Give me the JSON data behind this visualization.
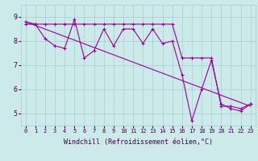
{
  "title": "",
  "xlabel": "Windchill (Refroidissement éolien,°C)",
  "ylabel": "",
  "xlim": [
    -0.5,
    23.5
  ],
  "ylim": [
    4.5,
    9.5
  ],
  "yticks": [
    5,
    6,
    7,
    8,
    9
  ],
  "xticks": [
    0,
    1,
    2,
    3,
    4,
    5,
    6,
    7,
    8,
    9,
    10,
    11,
    12,
    13,
    14,
    15,
    16,
    17,
    18,
    19,
    20,
    21,
    22,
    23
  ],
  "bg_color": "#cceaea",
  "line_color": "#990099",
  "grid_color": "#aacccc",
  "line1_x": [
    0,
    1,
    2,
    3,
    4,
    5,
    6,
    7,
    8,
    9,
    10,
    11,
    12,
    13,
    14,
    15,
    16,
    17,
    18,
    19,
    20,
    21,
    22,
    23
  ],
  "line1_y": [
    8.8,
    8.7,
    8.1,
    7.8,
    7.7,
    8.9,
    7.3,
    7.6,
    8.5,
    7.8,
    8.5,
    8.5,
    7.9,
    8.5,
    7.9,
    8.0,
    6.6,
    4.7,
    6.0,
    7.2,
    5.4,
    5.2,
    5.1,
    5.4
  ],
  "line2_x": [
    0,
    1,
    2,
    3,
    4,
    5,
    6,
    7,
    8,
    9,
    10,
    11,
    12,
    13,
    14,
    15,
    16,
    17,
    18,
    19,
    20,
    21,
    22,
    23
  ],
  "line2_y": [
    8.7,
    8.7,
    8.7,
    8.7,
    8.7,
    8.7,
    8.7,
    8.7,
    8.7,
    8.7,
    8.7,
    8.7,
    8.7,
    8.7,
    8.7,
    8.7,
    7.3,
    7.3,
    7.3,
    7.3,
    5.3,
    5.3,
    5.2,
    5.4
  ],
  "line3_x": [
    0,
    23
  ],
  "line3_y": [
    8.8,
    5.3
  ]
}
